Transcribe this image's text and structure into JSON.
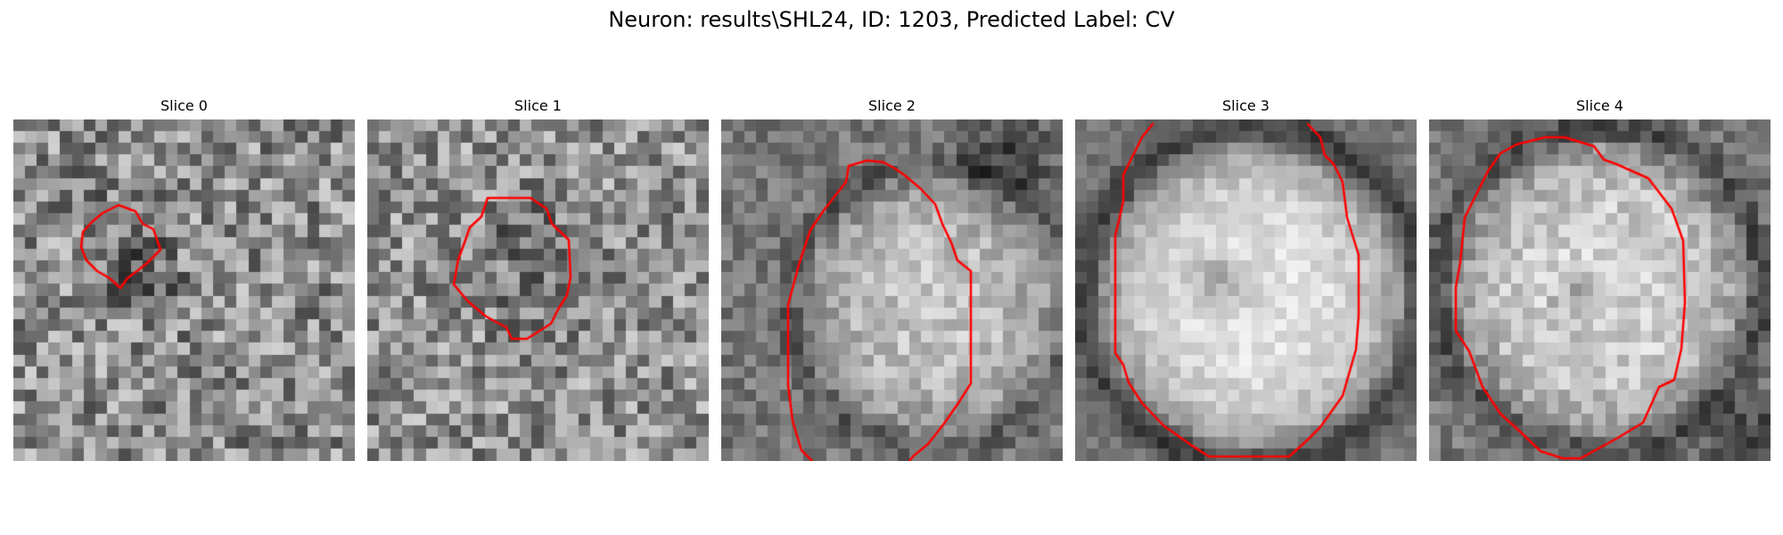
{
  "figure": {
    "title": "Neuron: results\\SHL24, ID: 1203, Predicted Label: CV",
    "contour_color": "#ff0000",
    "panels": [
      {
        "label": "Slice 0",
        "content": "noisy grayscale patch with a small dark cell and red contour"
      },
      {
        "label": "Slice 1",
        "content": "noisy grayscale patch with a medium dark cell and red contour"
      },
      {
        "label": "Slice 2",
        "content": "grayscale patch with a large bright cell and red contour"
      },
      {
        "label": "Slice 3",
        "content": "grayscale patch with a very large bright cell and red contour"
      },
      {
        "label": "Slice 4",
        "content": "grayscale patch with a bright cell with dark center and red contour"
      }
    ]
  }
}
